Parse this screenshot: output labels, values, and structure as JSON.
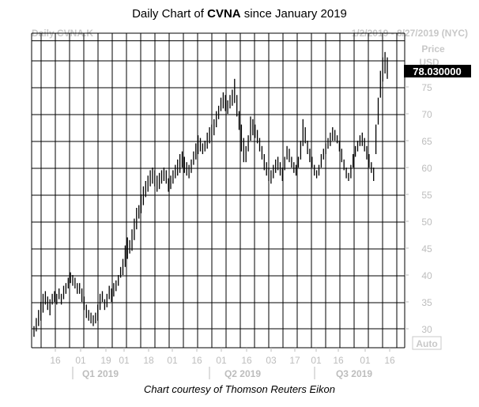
{
  "title": {
    "prefix": "Daily Chart of ",
    "ticker": "CVNA",
    "suffix": " since January 2019"
  },
  "header": {
    "symbol": "Daily CVNA.K",
    "range": "1/2/2019 - 8/27/2019 (NYC)"
  },
  "price_label": "Price",
  "currency_label": "USD",
  "last_price": "78.030000",
  "auto_button": "Auto",
  "footer": "Chart courtesy of Thomson Reuters Eikon",
  "colors": {
    "grid": "#000000",
    "bars": "#000000",
    "axis_text": "#bdbdbd",
    "price_box": "#000000"
  },
  "chart_data": {
    "type": "ohlc",
    "title": "Daily Chart of CVNA since January 2019",
    "y_ticks": [
      30,
      35,
      40,
      45,
      50,
      55,
      60,
      65,
      70,
      75
    ],
    "ylim": [
      27,
      82
    ],
    "x_ticks": [
      "16",
      "01",
      "19",
      "01",
      "18",
      "01",
      "16",
      "01",
      "16",
      "03",
      "17",
      "01",
      "16",
      "01",
      "16"
    ],
    "quarters": [
      "Q1 2019",
      "Q2 2019",
      "Q3 2019"
    ],
    "grid": true,
    "last_value": 78.03,
    "daily_bars": [
      [
        30.5,
        28.5
      ],
      [
        32,
        29.5
      ],
      [
        33.5,
        30.5
      ],
      [
        35,
        31.5
      ],
      [
        36.5,
        33
      ],
      [
        37,
        34.5
      ],
      [
        36,
        33.5
      ],
      [
        35.5,
        32.5
      ],
      [
        36.5,
        34.5
      ],
      [
        37,
        35
      ],
      [
        36.5,
        34.5
      ],
      [
        37.5,
        35.5
      ],
      [
        36.5,
        34.5
      ],
      [
        38,
        35.5
      ],
      [
        38.5,
        36.5
      ],
      [
        39.5,
        37.5
      ],
      [
        40.5,
        38.5
      ],
      [
        40,
        38
      ],
      [
        39.5,
        37.5
      ],
      [
        38.5,
        36.5
      ],
      [
        38.5,
        36.5
      ],
      [
        37.5,
        35
      ],
      [
        36,
        33.5
      ],
      [
        34.5,
        32
      ],
      [
        33.5,
        31.5
      ],
      [
        33,
        31
      ],
      [
        32.5,
        30.5
      ],
      [
        33,
        31
      ],
      [
        34.5,
        31.5
      ],
      [
        36.5,
        33.5
      ],
      [
        37,
        35
      ],
      [
        35.5,
        33.5
      ],
      [
        36.5,
        34
      ],
      [
        38,
        35.5
      ],
      [
        37.5,
        35
      ],
      [
        38.5,
        36
      ],
      [
        39,
        37
      ],
      [
        40,
        38
      ],
      [
        41.5,
        39.5
      ],
      [
        43,
        40
      ],
      [
        45.5,
        41.5
      ],
      [
        47,
        43
      ],
      [
        46.5,
        44
      ],
      [
        48.5,
        44.5
      ],
      [
        50.5,
        46.5
      ],
      [
        52.5,
        48.5
      ],
      [
        53,
        50.5
      ],
      [
        55,
        51.5
      ],
      [
        56.5,
        53
      ],
      [
        57.5,
        54.5
      ],
      [
        58.5,
        55.5
      ],
      [
        59.5,
        56.5
      ],
      [
        60,
        57
      ],
      [
        59.5,
        56.5
      ],
      [
        58.5,
        55.5
      ],
      [
        59,
        56
      ],
      [
        59.5,
        57
      ],
      [
        60,
        57.5
      ],
      [
        59.5,
        57
      ],
      [
        58,
        55.5
      ],
      [
        58.5,
        56
      ],
      [
        59.5,
        57
      ],
      [
        60.5,
        58
      ],
      [
        61.5,
        58.5
      ],
      [
        62.5,
        59
      ],
      [
        63,
        60
      ],
      [
        62,
        59
      ],
      [
        61,
        58.5
      ],
      [
        60.5,
        58
      ],
      [
        61.5,
        59
      ],
      [
        63,
        60.5
      ],
      [
        64.5,
        61.5
      ],
      [
        66,
        62.5
      ],
      [
        65.5,
        63
      ],
      [
        64.5,
        62.5
      ],
      [
        65,
        63
      ],
      [
        66.5,
        63.5
      ],
      [
        67.5,
        64.5
      ],
      [
        68,
        65
      ],
      [
        69,
        66
      ],
      [
        70.5,
        67.5
      ],
      [
        71.5,
        69
      ],
      [
        73,
        70.5
      ],
      [
        74,
        71
      ],
      [
        73.5,
        70.5
      ],
      [
        72.5,
        70
      ],
      [
        73.5,
        71
      ],
      [
        74.5,
        71.5
      ],
      [
        76.5,
        72
      ],
      [
        73.5,
        69.5
      ],
      [
        70.5,
        67
      ],
      [
        68,
        63
      ],
      [
        65.5,
        61
      ],
      [
        64,
        61
      ],
      [
        66,
        63
      ],
      [
        69.5,
        65
      ],
      [
        69,
        66
      ],
      [
        68,
        65.5
      ],
      [
        67,
        64.5
      ],
      [
        65.5,
        63
      ],
      [
        64,
        61.5
      ],
      [
        62.5,
        59.5
      ],
      [
        61,
        58.5
      ],
      [
        60,
        57.5
      ],
      [
        59.5,
        57
      ],
      [
        60.5,
        58
      ],
      [
        61.5,
        59
      ],
      [
        62,
        59.5
      ],
      [
        61,
        58.5
      ],
      [
        60,
        57.5
      ],
      [
        62,
        59.5
      ],
      [
        64,
        61.5
      ],
      [
        63.5,
        61
      ],
      [
        62,
        60
      ],
      [
        61,
        59
      ],
      [
        60.5,
        58.5
      ],
      [
        62,
        60
      ],
      [
        65,
        61.5
      ],
      [
        69,
        64
      ],
      [
        67.5,
        64.5
      ],
      [
        65,
        62.5
      ],
      [
        63.5,
        61
      ],
      [
        62,
        60
      ],
      [
        60.5,
        58.5
      ],
      [
        59.5,
        58
      ],
      [
        60.5,
        58.5
      ],
      [
        62.5,
        60
      ],
      [
        63.5,
        61.5
      ],
      [
        64.5,
        62.5
      ],
      [
        65.5,
        63.5
      ],
      [
        66.5,
        64
      ],
      [
        67.5,
        65
      ],
      [
        67,
        65
      ],
      [
        66,
        64.5
      ],
      [
        65,
        63
      ],
      [
        63.5,
        61
      ],
      [
        61.5,
        59.5
      ],
      [
        60,
        58
      ],
      [
        59,
        57.5
      ],
      [
        60.5,
        58
      ],
      [
        62.5,
        60
      ],
      [
        64,
        62
      ],
      [
        65,
        63
      ],
      [
        66,
        64
      ],
      [
        66.5,
        64
      ],
      [
        65.5,
        63
      ],
      [
        64,
        61.5
      ],
      [
        62.5,
        60
      ],
      [
        61,
        59
      ],
      [
        60,
        57.5
      ],
      [
        68,
        62.5
      ],
      [
        73,
        68
      ],
      [
        78,
        73
      ],
      [
        80.5,
        76
      ],
      [
        81.5,
        77.5
      ],
      [
        80.5,
        76.5
      ]
    ]
  }
}
